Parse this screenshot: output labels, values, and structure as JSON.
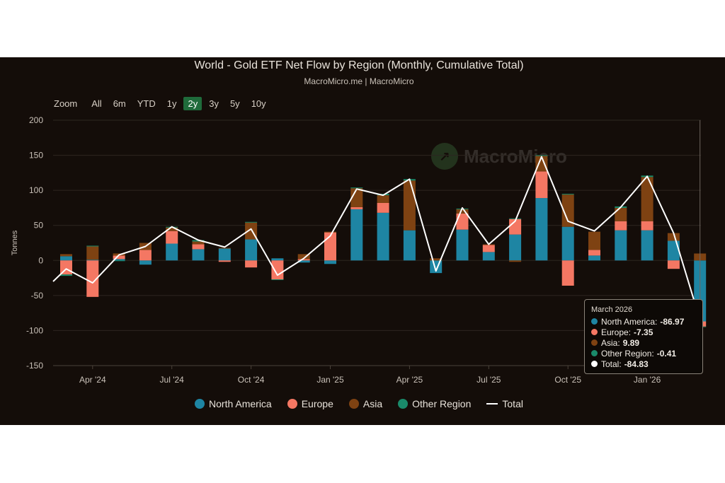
{
  "header": {
    "title": "World - Gold ETF Net Flow by Region (Monthly, Cumulative Total)",
    "subtitle": "MacroMicro.me | MacroMicro"
  },
  "zoom": {
    "label": "Zoom",
    "options": [
      "All",
      "6m",
      "YTD",
      "1y",
      "2y",
      "3y",
      "5y",
      "10y"
    ],
    "active": "2y"
  },
  "watermark": {
    "text": "MacroMicro",
    "icon": "macromicro-logo-icon"
  },
  "colors": {
    "north_america": "#1e85a3",
    "europe": "#f47763",
    "asia": "#7e4212",
    "other": "#1a8a6a",
    "total": "#ffffff",
    "grid": "#2d2620",
    "axis_text": "#c9c1b8"
  },
  "chart_data": {
    "type": "bar",
    "stacked": true,
    "title": "World - Gold ETF Net Flow by Region (Monthly, Cumulative Total)",
    "ylabel": "Tonnes",
    "ylim": [
      -150,
      200
    ],
    "yticks": [
      200,
      150,
      100,
      50,
      0,
      -50,
      -100,
      -150
    ],
    "xtick_labels": [
      {
        "label": "Apr '24",
        "index": 1
      },
      {
        "label": "Jul '24",
        "index": 4
      },
      {
        "label": "Oct '24",
        "index": 7
      },
      {
        "label": "Jan '25",
        "index": 10
      },
      {
        "label": "Apr '25",
        "index": 13
      },
      {
        "label": "Jul '25",
        "index": 16
      },
      {
        "label": "Oct '25",
        "index": 19
      },
      {
        "label": "Jan '26",
        "index": 22
      }
    ],
    "categories": [
      "Mar 2024",
      "Apr 2024",
      "May 2024",
      "Jun 2024",
      "Jul 2024",
      "Aug 2024",
      "Sep 2024",
      "Oct 2024",
      "Nov 2024",
      "Dec 2024",
      "Jan 2025",
      "Feb 2025",
      "Mar 2025",
      "Apr 2025",
      "May 2025",
      "Jun 2025",
      "Jul 2025",
      "Aug 2025",
      "Sep 2025",
      "Oct 2025",
      "Nov 2025",
      "Dec 2025",
      "Jan 2026",
      "Feb 2026",
      "Mar 2026"
    ],
    "series": [
      {
        "name": "North America",
        "key": "north_america",
        "values": [
          6,
          1,
          2,
          -6,
          24,
          16,
          17,
          30,
          3,
          -3,
          -5,
          73,
          68,
          43,
          -18,
          44,
          12,
          37,
          89,
          48,
          7,
          43,
          43,
          28,
          -86.97
        ]
      },
      {
        "name": "Europe",
        "key": "europe",
        "values": [
          -20,
          -52,
          5,
          15,
          18,
          7,
          -2,
          -10,
          -27,
          2,
          40,
          3,
          14,
          0,
          0,
          23,
          10,
          22,
          38,
          -36,
          8,
          13,
          13,
          -12,
          -7.35
        ]
      },
      {
        "name": "Asia",
        "key": "asia",
        "values": [
          3,
          19,
          3,
          10,
          5,
          4,
          1,
          24,
          0,
          7,
          1,
          27,
          11,
          71,
          3,
          6,
          1,
          -2,
          22,
          46,
          26,
          19,
          63,
          11,
          9.89
        ]
      },
      {
        "name": "Other Region",
        "key": "other",
        "values": [
          -2,
          1,
          -1,
          0,
          1,
          2,
          0,
          1,
          -1,
          0,
          0,
          1,
          2,
          2,
          0,
          1,
          0,
          1,
          1,
          1,
          0,
          2,
          2,
          0,
          -0.41
        ]
      }
    ],
    "total": {
      "name": "Total",
      "values": [
        -30,
        -12,
        -32,
        8,
        20,
        48,
        29,
        19,
        45,
        -21,
        3,
        35,
        102,
        93,
        116,
        -15,
        75,
        23,
        56,
        148,
        56,
        42,
        76,
        120,
        39,
        -84.83
      ]
    },
    "total_x_offset": -1
  },
  "tooltip": {
    "date": "March 2026",
    "rows": [
      {
        "label": "North America:",
        "value": "-86.97",
        "key": "north_america"
      },
      {
        "label": "Europe:",
        "value": "-7.35",
        "key": "europe"
      },
      {
        "label": "Asia:",
        "value": "9.89",
        "key": "asia"
      },
      {
        "label": "Other Region:",
        "value": "-0.41",
        "key": "other"
      },
      {
        "label": "Total:",
        "value": "-84.83",
        "key": "total"
      }
    ]
  },
  "legend": [
    {
      "label": "North America",
      "key": "north_america",
      "shape": "circle"
    },
    {
      "label": "Europe",
      "key": "europe",
      "shape": "circle"
    },
    {
      "label": "Asia",
      "key": "asia",
      "shape": "circle"
    },
    {
      "label": "Other Region",
      "key": "other",
      "shape": "circle"
    },
    {
      "label": "Total",
      "key": "total",
      "shape": "line"
    }
  ]
}
